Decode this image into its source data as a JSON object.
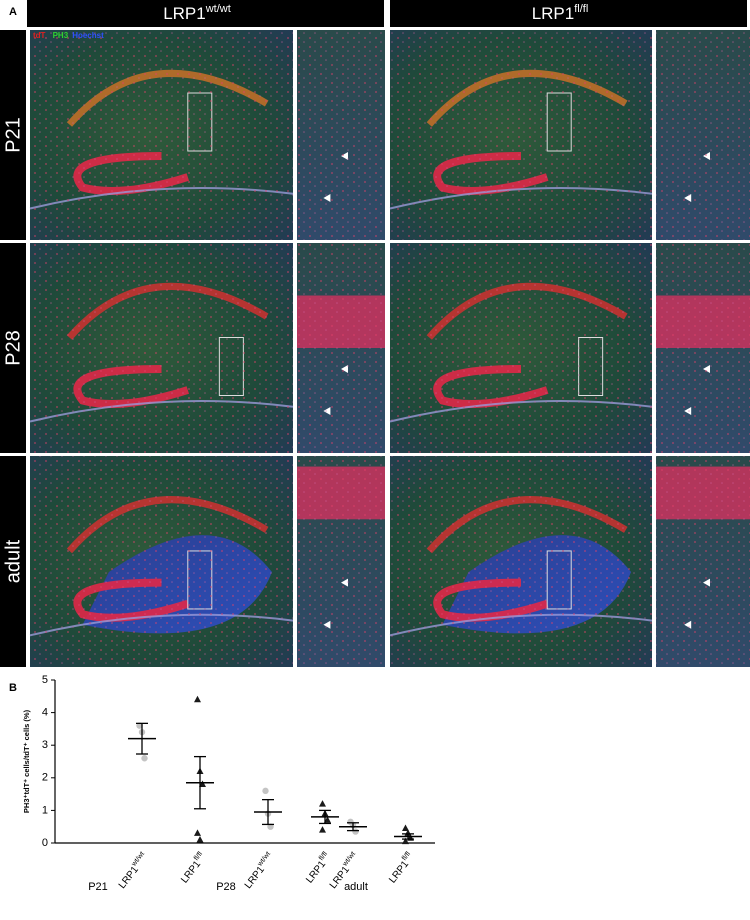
{
  "panel_a": {
    "label": "A",
    "columns": [
      {
        "name": "LRP1",
        "sup": "wt/wt"
      },
      {
        "name": "LRP1",
        "sup": "fl/fl"
      }
    ],
    "rows": [
      "P21",
      "P28",
      "adult"
    ],
    "stain_legend": [
      {
        "text": "tdT",
        "color": "#e02020"
      },
      {
        "text": "PH3",
        "color": "#30d030"
      },
      {
        "text": "Hoechst",
        "color": "#3050ff"
      }
    ]
  },
  "chart_data": {
    "type": "dot",
    "panel_label": "B",
    "y_label": "PH3⁺tdT⁺ cells/tdT⁺ cells (%)",
    "ylim": [
      0,
      5
    ],
    "yticks": [
      0,
      1,
      2,
      3,
      4,
      5
    ],
    "groups": [
      {
        "name": "P21",
        "series": [
          {
            "name": "LRP1",
            "sup": "wt/wt",
            "marker": "circle",
            "color": "#c4c4c4",
            "mean": 3.2,
            "sem": 0.47,
            "values": [
              3.6,
              3.4,
              2.6
            ]
          },
          {
            "name": "LRP1",
            "sup": "fl/fl",
            "marker": "triangle",
            "color": "#1a1a1a",
            "mean": 1.85,
            "sem": 0.8,
            "values": [
              4.4,
              2.2,
              1.8,
              0.3,
              0.1
            ]
          }
        ]
      },
      {
        "name": "P28",
        "series": [
          {
            "name": "LRP1",
            "sup": "wt/wt",
            "marker": "circle",
            "color": "#c4c4c4",
            "mean": 0.95,
            "sem": 0.38,
            "values": [
              1.6,
              0.9,
              0.5
            ]
          },
          {
            "name": "LRP1",
            "sup": "fl/fl",
            "marker": "triangle",
            "color": "#1a1a1a",
            "mean": 0.8,
            "sem": 0.2,
            "values": [
              1.2,
              0.9,
              0.7,
              0.4
            ]
          }
        ]
      },
      {
        "name": "adult",
        "series": [
          {
            "name": "LRP1",
            "sup": "wt/wt",
            "marker": "circle",
            "color": "#c4c4c4",
            "mean": 0.5,
            "sem": 0.12,
            "values": [
              0.65,
              0.55,
              0.35
            ]
          },
          {
            "name": "LRP1",
            "sup": "fl/fl",
            "marker": "triangle",
            "color": "#1a1a1a",
            "mean": 0.2,
            "sem": 0.08,
            "values": [
              0.45,
              0.3,
              0.15,
              0.05
            ]
          }
        ]
      }
    ]
  }
}
